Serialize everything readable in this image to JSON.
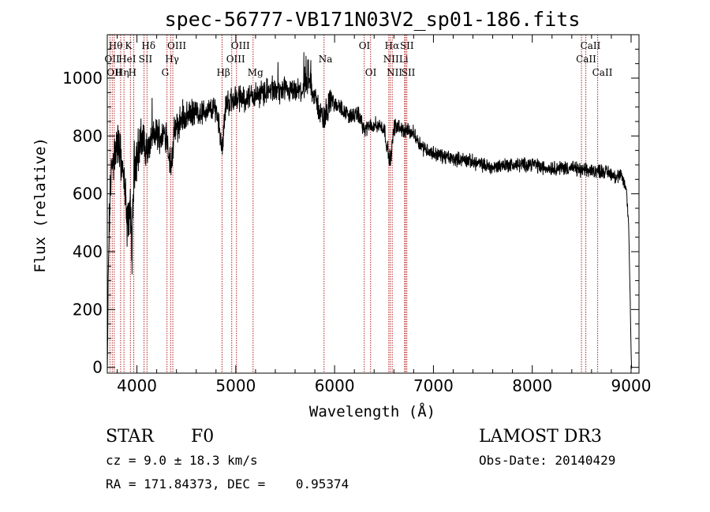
{
  "chart_data": {
    "type": "line",
    "title": "spec-56777-VB171N03V2_sp01-186.fits",
    "xlabel": "Wavelength (Å)",
    "ylabel": "Flux (relative)",
    "xlim": [
      3700,
      9080
    ],
    "ylim": [
      -20,
      1150
    ],
    "xticks": [
      4000,
      5000,
      6000,
      7000,
      8000,
      9000
    ],
    "yticks": [
      0,
      200,
      400,
      600,
      800,
      1000
    ],
    "xtick_labels": [
      "4000",
      "5000",
      "6000",
      "7000",
      "8000",
      "9000"
    ],
    "ytick_labels": [
      "0",
      "200",
      "400",
      "600",
      "800",
      "1000"
    ],
    "spectrum_anchors": {
      "x": [
        3700,
        3710,
        3720,
        3735,
        3760,
        3800,
        3850,
        3880,
        3900,
        3930,
        3950,
        3970,
        3990,
        4020,
        4060,
        4102,
        4150,
        4200,
        4250,
        4300,
        4340,
        4380,
        4450,
        4550,
        4650,
        4750,
        4800,
        4861,
        4900,
        5000,
        5100,
        5200,
        5300,
        5400,
        5500,
        5600,
        5700,
        5750,
        5800,
        5893,
        5950,
        6050,
        6150,
        6250,
        6300,
        6400,
        6500,
        6563,
        6600,
        6650,
        6700,
        6800,
        6850,
        6900,
        7000,
        7100,
        7200,
        7300,
        7400,
        7500,
        7600,
        7700,
        7800,
        7900,
        8000,
        8100,
        8200,
        8300,
        8400,
        8500,
        8600,
        8700,
        8800,
        8850,
        8900,
        8950,
        8975,
        8990,
        9000,
        9005,
        9010
      ],
      "y": [
        -20,
        300,
        500,
        650,
        720,
        780,
        700,
        600,
        480,
        560,
        400,
        700,
        720,
        760,
        790,
        740,
        790,
        810,
        800,
        810,
        690,
        810,
        860,
        880,
        880,
        890,
        900,
        760,
        910,
        930,
        930,
        940,
        955,
        955,
        950,
        950,
        960,
        990,
        930,
        850,
        920,
        900,
        870,
        870,
        820,
        840,
        830,
        700,
        830,
        830,
        820,
        810,
        780,
        760,
        740,
        730,
        720,
        720,
        710,
        700,
        690,
        700,
        700,
        700,
        705,
        690,
        690,
        690,
        690,
        680,
        680,
        680,
        670,
        660,
        660,
        620,
        500,
        250,
        50,
        0,
        0
      ]
    },
    "spectral_lines": [
      {
        "wl": 3727,
        "label": "OII",
        "row": 2
      },
      {
        "wl": 3750,
        "label": "OII",
        "row": 3
      },
      {
        "wl": 3770,
        "label": "Hθ",
        "row": 1
      },
      {
        "wl": 3835,
        "label": "Hη",
        "row": 3
      },
      {
        "wl": 3869,
        "label": "HeI",
        "row": 2
      },
      {
        "wl": 3934,
        "label": "K",
        "row": 1
      },
      {
        "wl": 3968,
        "label": "H",
        "row": 3
      },
      {
        "wl": 4072,
        "label": "SII",
        "row": 2
      },
      {
        "wl": 4102,
        "label": "Hδ",
        "row": 1
      },
      {
        "wl": 4304,
        "label": "G",
        "row": 3
      },
      {
        "wl": 4341,
        "label": "Hγ",
        "row": 2
      },
      {
        "wl": 4363,
        "label": "OIII",
        "row": 1
      },
      {
        "wl": 4861,
        "label": "Hβ",
        "row": 3
      },
      {
        "wl": 4959,
        "label": "OIII",
        "row": 2
      },
      {
        "wl": 5007,
        "label": "OIII",
        "row": 1
      },
      {
        "wl": 5175,
        "label": "Mg",
        "row": 3
      },
      {
        "wl": 5893,
        "label": "Na",
        "row": 2
      },
      {
        "wl": 6300,
        "label": "OI",
        "row": 1
      },
      {
        "wl": 6364,
        "label": "OI",
        "row": 3
      },
      {
        "wl": 6548,
        "label": "NII",
        "row": 2
      },
      {
        "wl": 6563,
        "label": "Hα",
        "row": 1
      },
      {
        "wl": 6583,
        "label": "NII",
        "row": 3
      },
      {
        "wl": 6708,
        "label": "Li",
        "row": 2
      },
      {
        "wl": 6717,
        "label": "SII",
        "row": 1
      },
      {
        "wl": 6731,
        "label": "SII",
        "row": 3
      },
      {
        "wl": 8498,
        "label": "CaII",
        "row": 2
      },
      {
        "wl": 8542,
        "label": "CaII",
        "row": 1
      },
      {
        "wl": 8662,
        "label": "CaII",
        "row": 3
      }
    ]
  },
  "info": {
    "class": "STAR",
    "subclass": "F0",
    "cz": "cz = 9.0 ± 18.3 km/s",
    "coords": "RA = 171.84373, DEC =    0.95374",
    "survey": "LAMOST DR3",
    "obs_date": "Obs-Date: 20140429"
  },
  "colors": {
    "line_marker": "#b22222",
    "spectrum": "#000000"
  }
}
